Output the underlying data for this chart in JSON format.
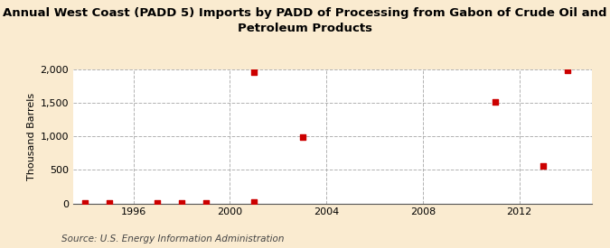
{
  "title": "Annual West Coast (PADD 5) Imports by PADD of Processing from Gabon of Crude Oil and\nPetroleum Products",
  "ylabel": "Thousand Barrels",
  "source": "Source: U.S. Energy Information Administration",
  "background_color": "#faebd0",
  "plot_background_color": "#ffffff",
  "grid_color": "#aaaaaa",
  "data_color": "#cc0000",
  "years": [
    1994,
    1995,
    1997,
    1998,
    1999,
    2001,
    2001,
    2003,
    2011,
    2013,
    2014
  ],
  "values": [
    5,
    5,
    10,
    10,
    5,
    1960,
    25,
    990,
    1510,
    565,
    1985
  ],
  "xlim": [
    1993.5,
    2015
  ],
  "ylim": [
    0,
    2000
  ],
  "yticks": [
    0,
    500,
    1000,
    1500,
    2000
  ],
  "xticks": [
    1996,
    2000,
    2004,
    2008,
    2012
  ],
  "title_fontsize": 9.5,
  "axis_fontsize": 8,
  "tick_fontsize": 8,
  "source_fontsize": 7.5,
  "marker_size": 18
}
